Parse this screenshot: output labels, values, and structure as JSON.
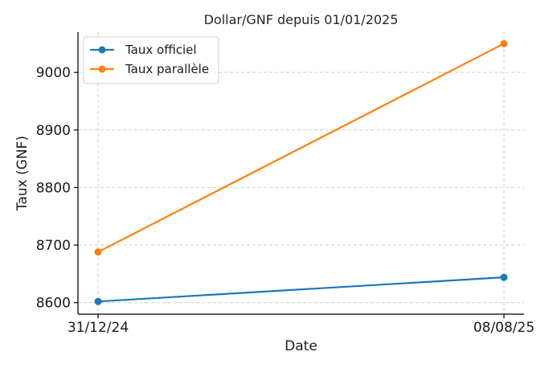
{
  "chart_data": {
    "type": "line",
    "title": "Dollar/GNF depuis 01/01/2025",
    "xlabel": "Date",
    "ylabel": "Taux (GNF)",
    "categories": [
      "31/12/24",
      "08/08/25"
    ],
    "ylim": [
      8580,
      9070
    ],
    "yticks": [
      8600,
      8700,
      8800,
      8900,
      9000
    ],
    "grid": true,
    "legend_position": "top-left",
    "series": [
      {
        "name": "Taux officiel",
        "color": "#1f77b4",
        "values": [
          8602,
          8644
        ]
      },
      {
        "name": "Taux parallèle",
        "color": "#ff7f0e",
        "values": [
          8688,
          9050
        ]
      }
    ]
  }
}
